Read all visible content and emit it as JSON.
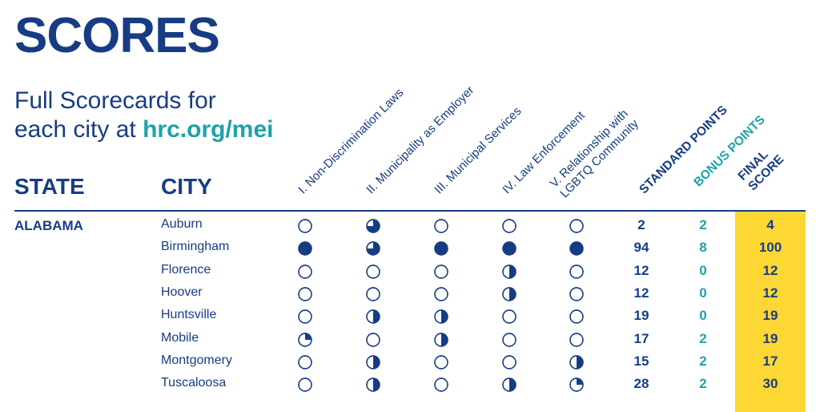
{
  "page": {
    "title": "SCORES",
    "subtitle_line1": "Full Scorecards for",
    "subtitle_line2": "each city at",
    "link": "hrc.org/mei"
  },
  "table": {
    "state_header": "STATE",
    "city_header": "CITY",
    "category_headers": [
      [
        "I. Non-Discrimination Laws"
      ],
      [
        "II. Municipality as Employer"
      ],
      [
        "III. Municipal Services"
      ],
      [
        "IV. Law Enforcement"
      ],
      [
        "V. Relationship with",
        "LGBTQ Community"
      ]
    ],
    "standard_header": "STANDARD POINTS",
    "bonus_header": "BONUS POINTS",
    "final_header": [
      "FINAL",
      "SCORE"
    ],
    "state": "ALABAMA",
    "rows": [
      {
        "city": "Auburn",
        "categories": [
          0,
          0.75,
          0,
          0,
          0
        ],
        "standard": "2",
        "bonus": "2",
        "final": "4"
      },
      {
        "city": "Birmingham",
        "categories": [
          1,
          0.75,
          1,
          1,
          1
        ],
        "standard": "94",
        "bonus": "8",
        "final": "100"
      },
      {
        "city": "Florence",
        "categories": [
          0,
          0,
          0,
          0.5,
          0
        ],
        "standard": "12",
        "bonus": "0",
        "final": "12"
      },
      {
        "city": "Hoover",
        "categories": [
          0,
          0,
          0,
          0.5,
          0
        ],
        "standard": "12",
        "bonus": "0",
        "final": "12"
      },
      {
        "city": "Huntsville",
        "categories": [
          0,
          0.5,
          0.5,
          0,
          0
        ],
        "standard": "19",
        "bonus": "0",
        "final": "19"
      },
      {
        "city": "Mobile",
        "categories": [
          0.25,
          0,
          0.5,
          0,
          0
        ],
        "standard": "17",
        "bonus": "2",
        "final": "19"
      },
      {
        "city": "Montgomery",
        "categories": [
          0,
          0.5,
          0,
          0,
          0.5
        ],
        "standard": "15",
        "bonus": "2",
        "final": "17"
      },
      {
        "city": "Tuscaloosa",
        "categories": [
          0,
          0.5,
          0,
          0.5,
          0.25
        ],
        "standard": "28",
        "bonus": "2",
        "final": "30"
      }
    ]
  },
  "colors": {
    "navy": "#173c84",
    "teal": "#1ba3a8",
    "highlight": "#fdd835"
  }
}
